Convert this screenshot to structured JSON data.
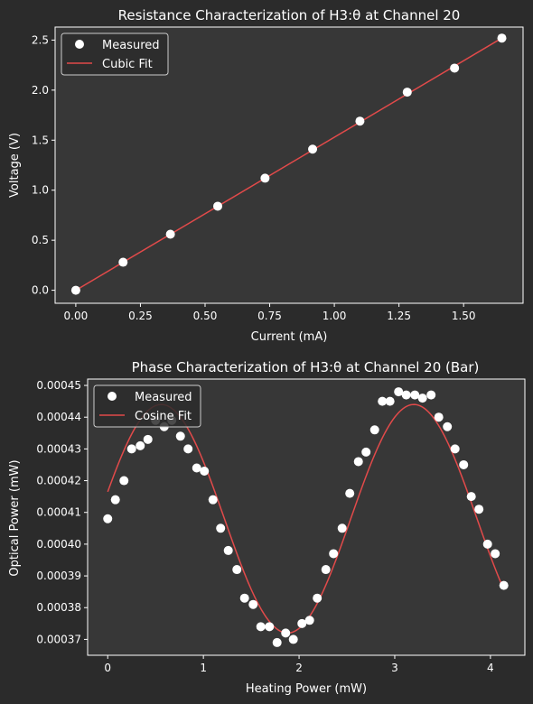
{
  "colors": {
    "figure_bg": "#2b2b2b",
    "axes_bg": "#373737",
    "axes_edge": "#ffffff",
    "marker": "#ffffff",
    "fit_line": "#e24a4a",
    "legend_bg": "#2b2b2b"
  },
  "chart_data": [
    {
      "type": "scatter",
      "title": "Resistance Characterization of H3:θ at Channel 20",
      "xlabel": "Current (mA)",
      "ylabel": "Voltage (V)",
      "xlim": [
        -0.08,
        1.73
      ],
      "ylim": [
        -0.13,
        2.63
      ],
      "xticks": [
        0.0,
        0.25,
        0.5,
        0.75,
        1.0,
        1.25,
        1.5
      ],
      "xtick_labels": [
        "0.00",
        "0.25",
        "0.50",
        "0.75",
        "1.00",
        "1.25",
        "1.50"
      ],
      "yticks": [
        0.0,
        0.5,
        1.0,
        1.5,
        2.0,
        2.5
      ],
      "ytick_labels": [
        "0.0",
        "0.5",
        "1.0",
        "1.5",
        "2.0",
        "2.5"
      ],
      "legend_position": "upper-left",
      "series": [
        {
          "name": "Measured",
          "kind": "scatter",
          "x": [
            0.0,
            0.183,
            0.366,
            0.549,
            0.732,
            0.916,
            1.099,
            1.282,
            1.465,
            1.648
          ],
          "y": [
            0.0,
            0.28,
            0.56,
            0.84,
            1.12,
            1.41,
            1.69,
            1.98,
            2.22,
            2.52
          ]
        },
        {
          "name": "Cubic Fit",
          "kind": "line",
          "x": [
            0.0,
            0.412,
            0.824,
            1.236,
            1.648
          ],
          "y": [
            0.0,
            0.63,
            1.26,
            1.89,
            2.52
          ]
        }
      ]
    },
    {
      "type": "scatter",
      "title": "Phase Characterization of H3:θ at Channel 20 (Bar)",
      "xlabel": "Heating Power (mW)",
      "ylabel": "Optical Power (mW)",
      "xlim": [
        -0.21,
        4.36
      ],
      "ylim": [
        0.000365,
        0.000452
      ],
      "xticks": [
        0,
        1,
        2,
        3,
        4
      ],
      "xtick_labels": [
        "0",
        "1",
        "2",
        "3",
        "4"
      ],
      "yticks": [
        0.00037,
        0.00038,
        0.00039,
        0.0004,
        0.00041,
        0.00042,
        0.00043,
        0.00044,
        0.00045
      ],
      "ytick_labels": [
        "0.00037",
        "0.00038",
        "0.00039",
        "0.00040",
        "0.00041",
        "0.00042",
        "0.00043",
        "0.00044",
        "0.00045"
      ],
      "legend_position": "upper-left",
      "series": [
        {
          "name": "Measured",
          "kind": "scatter",
          "x": [
            0.0,
            0.08,
            0.17,
            0.25,
            0.34,
            0.42,
            0.5,
            0.59,
            0.67,
            0.76,
            0.84,
            0.93,
            1.01,
            1.1,
            1.18,
            1.26,
            1.35,
            1.43,
            1.52,
            1.6,
            1.69,
            1.77,
            1.86,
            1.94,
            2.03,
            2.11,
            2.19,
            2.28,
            2.36,
            2.45,
            2.53,
            2.62,
            2.7,
            2.79,
            2.87,
            2.95,
            3.04,
            3.12,
            3.21,
            3.29,
            3.38,
            3.46,
            3.55,
            3.63,
            3.72,
            3.8,
            3.88,
            3.97,
            4.05,
            4.14
          ],
          "y": [
            0.000408,
            0.000414,
            0.00042,
            0.00043,
            0.000431,
            0.000433,
            0.000439,
            0.000437,
            0.000439,
            0.000434,
            0.00043,
            0.000424,
            0.000423,
            0.000414,
            0.000405,
            0.000398,
            0.000392,
            0.000383,
            0.000381,
            0.000374,
            0.000374,
            0.000369,
            0.000372,
            0.00037,
            0.000375,
            0.000376,
            0.000383,
            0.000392,
            0.000397,
            0.000405,
            0.000416,
            0.000426,
            0.000429,
            0.000436,
            0.000445,
            0.000445,
            0.000448,
            0.000447,
            0.000447,
            0.000446,
            0.000447,
            0.00044,
            0.000437,
            0.00043,
            0.000425,
            0.000415,
            0.000411,
            0.0004,
            0.000397,
            0.000387
          ]
        },
        {
          "name": "Cosine Fit",
          "kind": "line",
          "offset": 0.000408,
          "amplitude": 3.6e-05,
          "period": 2.64,
          "peak_x": 0.56,
          "x_range": [
            0.0,
            4.14
          ]
        }
      ]
    }
  ]
}
